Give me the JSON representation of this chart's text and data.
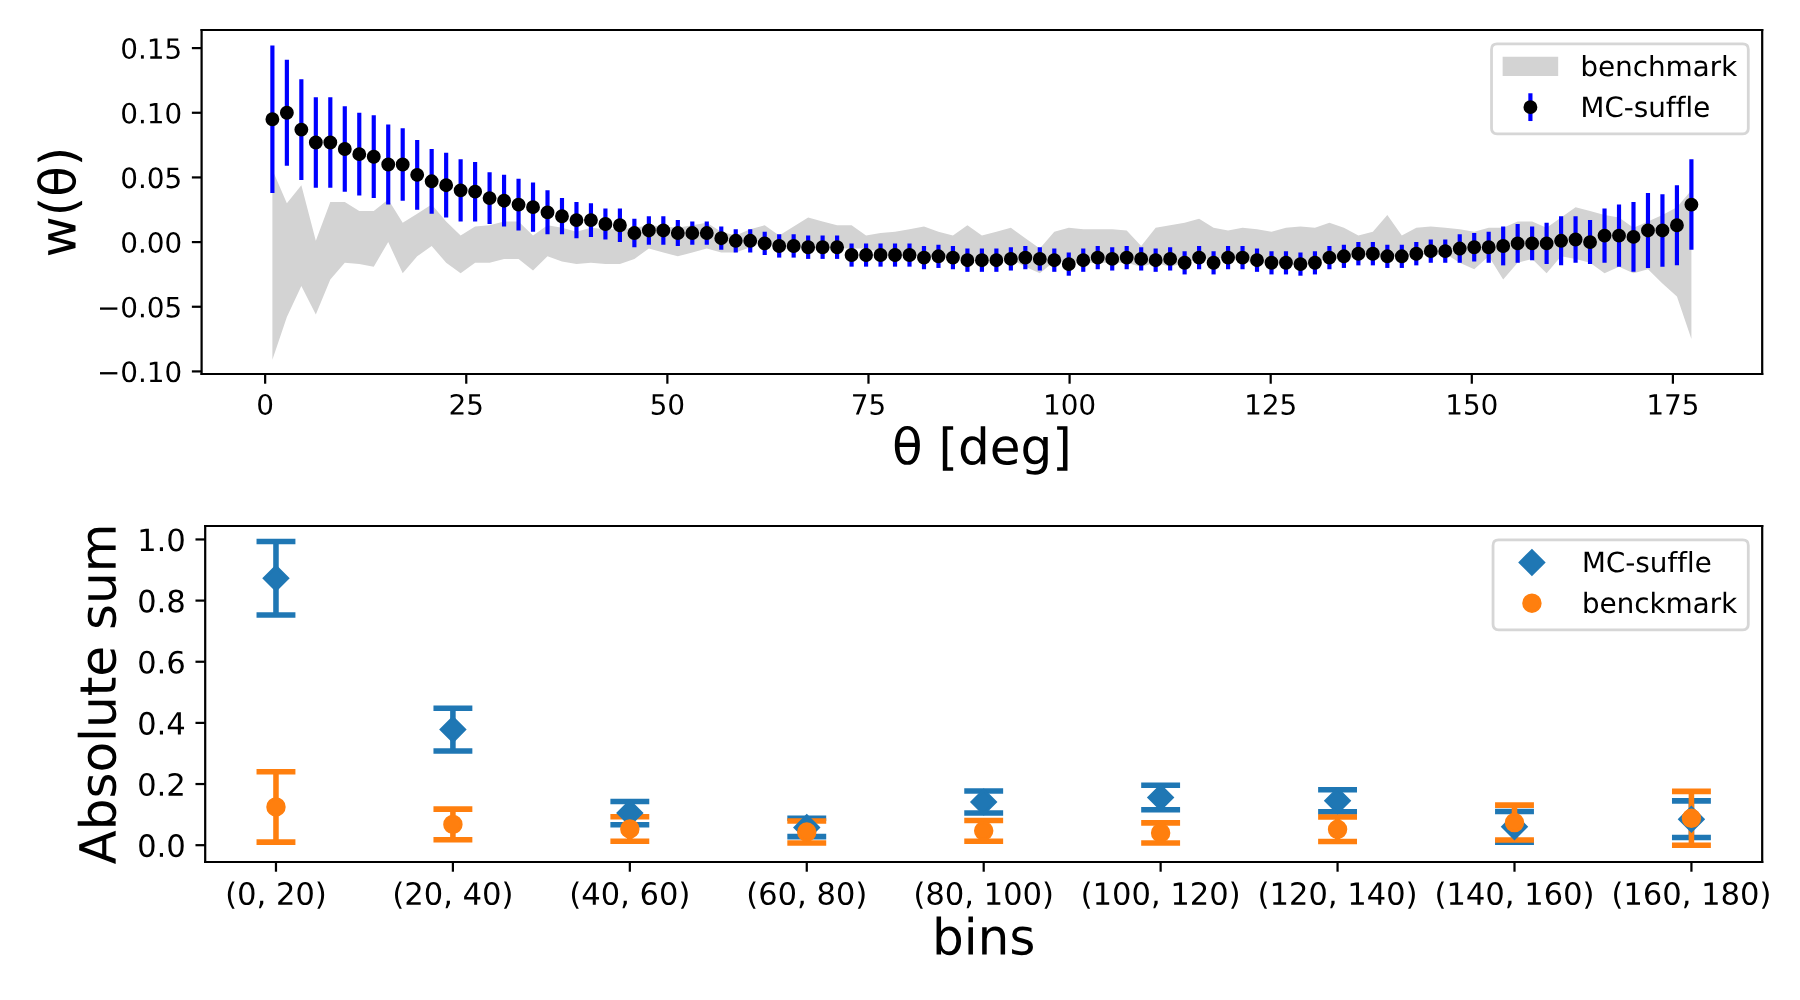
{
  "chart_data": [
    {
      "type": "scatter",
      "xlabel": "θ [deg]",
      "ylabel": "w(θ)",
      "legend": "top right",
      "grid": false,
      "xlim": [
        -7.9,
        186.1
      ],
      "xticks": [
        0,
        25,
        50,
        75,
        100,
        125,
        150,
        175
      ],
      "ylim": [
        -0.102,
        0.164
      ],
      "yticks": [
        {
          "value": -0.1,
          "label": "−0.10"
        },
        {
          "value": -0.05,
          "label": "−0.05"
        },
        {
          "value": 0,
          "label": "0.00"
        },
        {
          "value": 0.05,
          "label": "0.05"
        },
        {
          "value": 0.1,
          "label": "0.10"
        },
        {
          "value": 0.15,
          "label": "0.15"
        }
      ],
      "x": [
        0.9,
        2.7,
        4.5,
        6.3,
        8.1,
        9.9,
        11.7,
        13.5,
        15.3,
        17.1,
        18.9,
        20.7,
        22.5,
        24.3,
        26.1,
        27.9,
        29.7,
        31.5,
        33.3,
        35.1,
        36.9,
        38.7,
        40.5,
        42.3,
        44.1,
        45.9,
        47.7,
        49.5,
        51.3,
        53.1,
        54.9,
        56.7,
        58.5,
        60.3,
        62.1,
        63.9,
        65.7,
        67.5,
        69.3,
        71.1,
        72.9,
        74.7,
        76.5,
        78.3,
        80.1,
        81.9,
        83.7,
        85.5,
        87.3,
        89.1,
        90.9,
        92.7,
        94.5,
        96.3,
        98.1,
        99.9,
        101.7,
        103.5,
        105.3,
        107.1,
        108.9,
        110.7,
        112.5,
        114.3,
        116.1,
        117.9,
        119.7,
        121.5,
        123.3,
        125.1,
        126.9,
        128.7,
        130.5,
        132.3,
        134.1,
        135.9,
        137.7,
        139.5,
        141.3,
        143.1,
        144.9,
        146.7,
        148.5,
        150.3,
        152.1,
        153.9,
        155.7,
        157.5,
        159.3,
        161.1,
        162.9,
        164.7,
        166.5,
        168.3,
        170.1,
        171.9,
        173.7,
        175.5,
        177.3
      ],
      "series": [
        {
          "name": "benchmark",
          "type": "area",
          "color": "#d3d3d3",
          "values": [
            null,
            null,
            null,
            null,
            null,
            null,
            null,
            null,
            null,
            null,
            null,
            null,
            null,
            null,
            null,
            null,
            null,
            null,
            null,
            null,
            null,
            null,
            null,
            null,
            null,
            null,
            null,
            null,
            null,
            null,
            null,
            null,
            null,
            null,
            null,
            null,
            null,
            null,
            null,
            null,
            null,
            null,
            null,
            null,
            null,
            null,
            null,
            null,
            null,
            null,
            null,
            null,
            null,
            null,
            null,
            null,
            null,
            null,
            null,
            null,
            null,
            null,
            null,
            null,
            null,
            null,
            null,
            null,
            null,
            null,
            null,
            null,
            null,
            null,
            null,
            null,
            null,
            null,
            null,
            null,
            null,
            null,
            null,
            null,
            null,
            null,
            null,
            null,
            null,
            null,
            null,
            null,
            null,
            null,
            null,
            null,
            null,
            null,
            null
          ],
          "upper": [
            0.056,
            0.03,
            0.044,
            0.001,
            0.031,
            0.031,
            0.024,
            0.024,
            0.033,
            0.015,
            0.022,
            0.029,
            0.016,
            0.005,
            0.012,
            0.013,
            0.016,
            0.016,
            0.005,
            0.013,
            0.011,
            0.008,
            0.011,
            0.01,
            0.01,
            0.011,
            0.013,
            0.012,
            0.011,
            0.013,
            0.015,
            0.008,
            0.005,
            0.01,
            0.013,
            0.005,
            0.012,
            0.019,
            0.016,
            0.013,
            0.013,
            0.005,
            0.007,
            0.008,
            0.01,
            0.012,
            0.008,
            0.005,
            0.013,
            0.005,
            0.008,
            0.011,
            0.003,
            -0.005,
            0.008,
            0.011,
            0.01,
            0.01,
            0.01,
            0.009,
            -0.003,
            0.011,
            0.013,
            0.015,
            0.018,
            0.011,
            0.009,
            0.011,
            0.01,
            0.008,
            0.011,
            0.012,
            0.011,
            0.015,
            0.011,
            0.005,
            0.008,
            0.021,
            0.005,
            0.011,
            0.012,
            0.011,
            0.01,
            0.008,
            0.011,
            0.011,
            0.016,
            0.016,
            0.011,
            0.019,
            0.027,
            0.024,
            0.021,
            0.019,
            0.011,
            0.016,
            0.021,
            0.027,
            0.04
          ],
          "lower": [
            -0.091,
            -0.058,
            -0.034,
            -0.056,
            -0.029,
            -0.016,
            -0.017,
            -0.019,
            -0.0,
            -0.024,
            -0.011,
            -0.003,
            -0.016,
            -0.024,
            -0.016,
            -0.016,
            -0.013,
            -0.013,
            -0.022,
            -0.011,
            -0.015,
            -0.017,
            -0.016,
            -0.017,
            -0.017,
            -0.013,
            -0.005,
            -0.008,
            -0.011,
            -0.008,
            -0.005,
            -0.008,
            -0.008,
            -0.004,
            0.0,
            -0.005,
            -0.005,
            -0.005,
            -0.005,
            -0.005,
            -0.005,
            -0.005,
            -0.008,
            -0.011,
            -0.011,
            -0.011,
            -0.012,
            -0.013,
            -0.013,
            -0.013,
            -0.013,
            -0.013,
            -0.019,
            -0.024,
            -0.015,
            -0.016,
            -0.016,
            -0.016,
            -0.016,
            -0.016,
            -0.019,
            -0.016,
            -0.019,
            -0.016,
            -0.013,
            -0.013,
            -0.012,
            -0.015,
            -0.016,
            -0.015,
            -0.016,
            -0.019,
            -0.015,
            -0.013,
            -0.013,
            -0.011,
            -0.011,
            -0.013,
            -0.008,
            -0.008,
            -0.011,
            -0.009,
            -0.016,
            -0.021,
            -0.011,
            -0.029,
            -0.016,
            -0.013,
            -0.024,
            -0.011,
            -0.013,
            -0.016,
            -0.024,
            -0.019,
            -0.024,
            -0.021,
            -0.032,
            -0.042,
            -0.075
          ]
        },
        {
          "name": "MC-suffle",
          "type": "scatter",
          "color": "#000000",
          "marker": "circle",
          "values": [
            0.095,
            0.1,
            0.087,
            0.077,
            0.077,
            0.072,
            0.068,
            0.066,
            0.06,
            0.06,
            0.052,
            0.047,
            0.044,
            0.04,
            0.039,
            0.034,
            0.032,
            0.029,
            0.027,
            0.023,
            0.02,
            0.017,
            0.017,
            0.014,
            0.013,
            0.007,
            0.009,
            0.009,
            0.007,
            0.007,
            0.007,
            0.003,
            0.001,
            0.001,
            -0.001,
            -0.003,
            -0.003,
            -0.004,
            -0.004,
            -0.004,
            -0.01,
            -0.01,
            -0.01,
            -0.01,
            -0.01,
            -0.012,
            -0.011,
            -0.012,
            -0.014,
            -0.014,
            -0.014,
            -0.013,
            -0.012,
            -0.013,
            -0.014,
            -0.017,
            -0.014,
            -0.012,
            -0.013,
            -0.012,
            -0.013,
            -0.014,
            -0.013,
            -0.016,
            -0.012,
            -0.016,
            -0.012,
            -0.012,
            -0.014,
            -0.016,
            -0.016,
            -0.017,
            -0.016,
            -0.012,
            -0.011,
            -0.009,
            -0.009,
            -0.011,
            -0.011,
            -0.009,
            -0.007,
            -0.007,
            -0.005,
            -0.004,
            -0.004,
            -0.003,
            -0.001,
            -0.001,
            -0.001,
            0.001,
            0.002,
            0.0,
            0.005,
            0.005,
            0.004,
            0.009,
            0.009,
            0.013,
            0.029
          ],
          "errors": [
            0.057,
            0.041,
            0.039,
            0.035,
            0.035,
            0.033,
            0.032,
            0.032,
            0.031,
            0.028,
            0.027,
            0.025,
            0.025,
            0.024,
            0.023,
            0.02,
            0.02,
            0.02,
            0.019,
            0.017,
            0.014,
            0.014,
            0.013,
            0.012,
            0.013,
            0.011,
            0.011,
            0.011,
            0.01,
            0.009,
            0.009,
            0.009,
            0.009,
            0.009,
            0.009,
            0.009,
            0.009,
            0.009,
            0.009,
            0.009,
            0.009,
            0.009,
            0.009,
            0.009,
            0.009,
            0.009,
            0.009,
            0.009,
            0.009,
            0.009,
            0.009,
            0.009,
            0.009,
            0.009,
            0.009,
            0.009,
            0.009,
            0.009,
            0.009,
            0.009,
            0.009,
            0.009,
            0.009,
            0.009,
            0.009,
            0.009,
            0.009,
            0.009,
            0.009,
            0.009,
            0.009,
            0.009,
            0.009,
            0.009,
            0.009,
            0.009,
            0.009,
            0.009,
            0.009,
            0.009,
            0.009,
            0.009,
            0.011,
            0.011,
            0.012,
            0.015,
            0.015,
            0.013,
            0.016,
            0.019,
            0.018,
            0.017,
            0.021,
            0.024,
            0.027,
            0.029,
            0.028,
            0.031,
            0.035
          ]
        }
      ]
    },
    {
      "type": "scatter",
      "xlabel": "bins",
      "ylabel": "Absolute sum",
      "legend": "top right",
      "grid": false,
      "categories": [
        "(0, 20)",
        "(20, 40)",
        "(40, 60)",
        "(60, 80)",
        "(80, 100)",
        "(100, 120)",
        "(120, 140)",
        "(140, 160)",
        "(160, 180)"
      ],
      "ylim": [
        -0.055,
        1.044
      ],
      "yticks": [
        {
          "value": 0,
          "label": "0.0"
        },
        0.2,
        0.4,
        0.6,
        0.8,
        {
          "value": 1,
          "label": "1.0"
        }
      ],
      "series": [
        {
          "name": "MC-suffle",
          "color": "#1f77b4",
          "marker": "diamond",
          "values": [
            0.873,
            0.378,
            0.105,
            0.058,
            0.141,
            0.156,
            0.145,
            0.06,
            0.085
          ],
          "errors": [
            0.12,
            0.07,
            0.038,
            0.03,
            0.036,
            0.04,
            0.036,
            0.05,
            0.06
          ]
        },
        {
          "name": "benckmark",
          "color": "#ff7f0e",
          "marker": "circle",
          "values": [
            0.125,
            0.068,
            0.053,
            0.043,
            0.047,
            0.04,
            0.052,
            0.074,
            0.088
          ],
          "errors": [
            0.115,
            0.05,
            0.04,
            0.036,
            0.034,
            0.033,
            0.04,
            0.057,
            0.088
          ]
        }
      ]
    }
  ]
}
